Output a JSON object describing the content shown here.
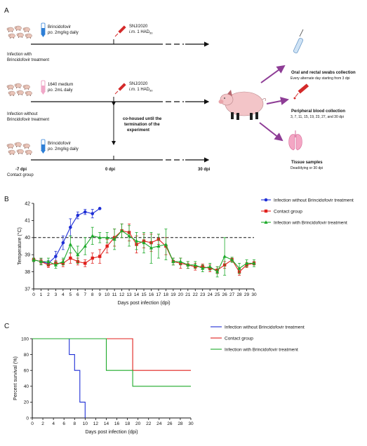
{
  "panelA": {
    "label": "A",
    "row1": {
      "drug": "Brincidofovir",
      "dose_prefix": "po.",
      "dose": " 2mg/kg daily",
      "group": [
        "Infection with",
        "Brincidofovir treatment"
      ]
    },
    "row2": {
      "drug": "1640 medium",
      "dose_prefix": "po.",
      "dose": " 2mL daily",
      "group": [
        "Infection without",
        "Brincidofovir treatment"
      ]
    },
    "row3": {
      "drug": "Brincidofovir",
      "dose_prefix": "po.",
      "dose": " 2mg/kg daily",
      "group": [
        "Contact group"
      ]
    },
    "virus": {
      "name": "SNJ/2020",
      "route": "i.m.",
      "dose_text": " 1 HAD",
      "dose_sub": "50"
    },
    "cohoused": [
      "co-housed until the",
      "termination of the",
      "experiment"
    ],
    "timeline": [
      "-7 dpi",
      "0 dpi",
      "30 dpi"
    ],
    "samples": [
      {
        "title": "Oral and rectal swabs collection",
        "detail": "Every alternate day starting from 3 dpi"
      },
      {
        "title": "Peripheral blood collection",
        "detail": "3, 7, 11, 15, 19, 23, 27, and 30 dpi"
      },
      {
        "title": "Tissue samples",
        "detail": "Dead/dying or 30 dpi"
      }
    ],
    "colors": {
      "arrow": "#8e3d96",
      "syringe": "#d42a2a",
      "tube_blue": "#2e7fd6",
      "tube_pink": "#f0a8c8",
      "lungs": "#f4a6c4",
      "pig": "#f3c5c8"
    }
  },
  "panelB": {
    "label": "B",
    "chart_data": {
      "type": "line",
      "xlabel": "Days post infection (dpi)",
      "ylabel": "Temperature (°C)",
      "xlim": [
        0,
        30
      ],
      "ylim": [
        37,
        42
      ],
      "xticks": [
        0,
        1,
        2,
        3,
        4,
        5,
        6,
        7,
        8,
        9,
        10,
        11,
        12,
        13,
        14,
        15,
        16,
        17,
        18,
        19,
        20,
        21,
        22,
        23,
        24,
        25,
        26,
        27,
        28,
        29,
        30
      ],
      "yticks": [
        37,
        38,
        39,
        40,
        41,
        42
      ],
      "threshold": 40,
      "legend_position": "top-right",
      "series": [
        {
          "name": "Infection without Brincidofovir treatment",
          "color": "#1f2fd6",
          "marker": "circle",
          "x": [
            0,
            1,
            2,
            3,
            4,
            5,
            6,
            7,
            8,
            9
          ],
          "y": [
            38.7,
            38.6,
            38.5,
            38.9,
            39.7,
            40.6,
            41.3,
            41.5,
            41.4,
            41.7
          ],
          "err": [
            0.1,
            0.15,
            0.15,
            0.3,
            0.4,
            0.5,
            0.2,
            0.15,
            0.25,
            0.0
          ]
        },
        {
          "name": "Contact group",
          "color": "#e0201c",
          "marker": "square",
          "x": [
            0,
            1,
            2,
            3,
            4,
            5,
            6,
            7,
            8,
            9,
            10,
            11,
            12,
            13,
            14,
            15,
            16,
            17,
            18,
            19,
            20,
            21,
            22,
            23,
            24,
            25,
            26,
            27,
            28,
            29,
            30
          ],
          "y": [
            38.7,
            38.6,
            38.4,
            38.5,
            38.5,
            38.8,
            38.6,
            38.5,
            38.8,
            38.9,
            39.5,
            40.0,
            40.4,
            40.3,
            39.6,
            39.8,
            39.7,
            39.9,
            39.5,
            38.6,
            38.5,
            38.4,
            38.3,
            38.3,
            38.2,
            38.1,
            38.4,
            38.7,
            38.0,
            38.4,
            38.5
          ],
          "err": [
            0.1,
            0.15,
            0.15,
            0.15,
            0.2,
            0.3,
            0.2,
            0.2,
            0.3,
            0.4,
            0.4,
            0.5,
            0.4,
            0.5,
            0.5,
            0.4,
            0.5,
            0.3,
            0.5,
            0.2,
            0.3,
            0.2,
            0.2,
            0.15,
            0.2,
            0.2,
            0.2,
            0.1,
            0.2,
            0.15,
            0.1
          ]
        },
        {
          "name": "Infection with Brincidofovir treatment",
          "color": "#1daa2a",
          "marker": "triangle",
          "x": [
            0,
            1,
            2,
            3,
            4,
            5,
            6,
            7,
            8,
            9,
            10,
            11,
            12,
            13,
            14,
            15,
            16,
            17,
            18,
            19,
            20,
            21,
            22,
            23,
            24,
            25,
            26,
            27,
            28,
            29,
            30
          ],
          "y": [
            38.7,
            38.6,
            38.6,
            38.4,
            38.6,
            39.6,
            39.0,
            39.5,
            40.1,
            40.0,
            40.0,
            39.9,
            40.4,
            40.1,
            39.8,
            39.7,
            39.4,
            39.5,
            39.6,
            38.6,
            38.6,
            38.4,
            38.4,
            38.2,
            38.3,
            38.0,
            38.9,
            38.7,
            38.2,
            38.5,
            38.5
          ],
          "err": [
            0.1,
            0.2,
            0.2,
            0.2,
            0.2,
            0.5,
            0.5,
            0.5,
            0.5,
            0.3,
            0.3,
            0.6,
            0.4,
            0.6,
            0.5,
            0.6,
            0.9,
            0.7,
            0.9,
            0.2,
            0.2,
            0.2,
            0.2,
            0.2,
            0.2,
            0.3,
            1.1,
            0.15,
            0.3,
            0.2,
            0.2
          ]
        }
      ]
    }
  },
  "panelC": {
    "label": "C",
    "chart_data": {
      "type": "line",
      "xlabel": "Days post infection (dpi)",
      "ylabel": "Percent survival (%)",
      "xlim": [
        0,
        30
      ],
      "ylim": [
        0,
        100
      ],
      "xticks": [
        0,
        2,
        4,
        6,
        8,
        10,
        12,
        14,
        16,
        18,
        20,
        22,
        24,
        26,
        28,
        30
      ],
      "yticks": [
        0,
        20,
        40,
        60,
        80,
        100
      ],
      "legend_position": "top-right",
      "series": [
        {
          "name": "Infection without Brincidofovir treatment",
          "color": "#1f2fd6",
          "x": [
            0,
            7,
            7,
            8,
            8,
            9,
            9,
            10,
            10
          ],
          "y": [
            100,
            100,
            80,
            80,
            60,
            60,
            20,
            20,
            0
          ]
        },
        {
          "name": "Contact group",
          "color": "#e0201c",
          "x": [
            0,
            19,
            19,
            30
          ],
          "y": [
            100,
            100,
            60,
            60
          ]
        },
        {
          "name": "Infection with Brincidofovir treatment",
          "color": "#1daa2a",
          "x": [
            0,
            14,
            14,
            19,
            19,
            30
          ],
          "y": [
            100,
            100,
            60,
            60,
            40,
            40
          ]
        }
      ]
    }
  }
}
